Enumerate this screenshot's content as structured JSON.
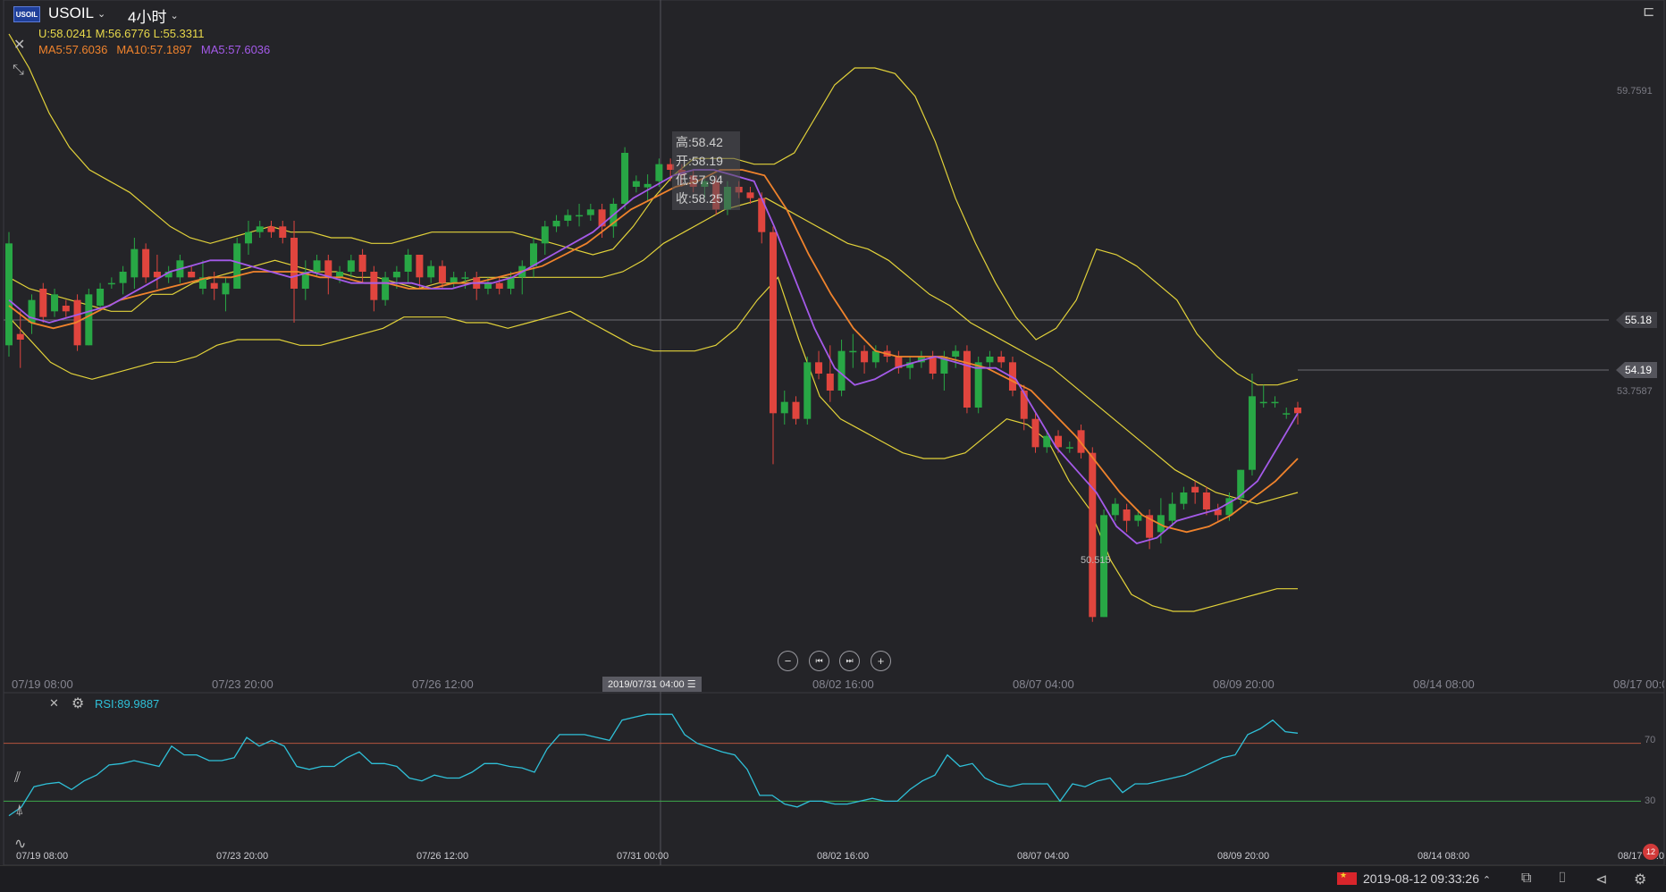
{
  "header": {
    "logo_text": "USOIL",
    "symbol": "USOIL",
    "period": "4小时",
    "bands": "U:58.0241 M:56.6776 L:55.3311",
    "ma": [
      {
        "label": "MA5:57.6036",
        "color": "#f0832c"
      },
      {
        "label": "MA10:57.1897",
        "color": "#f0832c"
      },
      {
        "label": "MA5:57.6036",
        "color": "#a45ae9"
      }
    ]
  },
  "tooltip": {
    "high": "高:58.42",
    "open": "开:58.19",
    "low": "低:57.94",
    "close": "收:58.25"
  },
  "price_axis": {
    "labels": [
      "59.7591",
      "53.7587"
    ],
    "hline_tag": "55.18",
    "last_tag": "54.19",
    "low_marker": "50.515"
  },
  "time_axis": {
    "main": [
      "07/19 08:00",
      "07/23 20:00",
      "07/26 12:00",
      "08/02 16:00",
      "08/07 04:00",
      "08/09 20:00",
      "08/14 08:00",
      "08/17 00:00"
    ],
    "crosshair_tag": "2019/07/31 04:00 ☰",
    "rsi": [
      "07/19 08:00",
      "07/23 20:00",
      "07/26 12:00",
      "07/31 00:00",
      "08/02 16:00",
      "08/07 04:00",
      "08/09 20:00",
      "08/14 08:00",
      "08/17 00:00"
    ]
  },
  "rsi": {
    "label": "RSI:89.9887",
    "levels": [
      "70",
      "30"
    ]
  },
  "status": {
    "datetime": "2019-08-12 09:33:26",
    "badge": "12"
  },
  "icons": [
    "close-icon",
    "collapse-icon",
    "settings-icon",
    "zoom-out-icon",
    "step-back-icon",
    "step-forward-icon",
    "zoom-in-icon",
    "indicator-icon",
    "drawing-icon",
    "pulse-icon",
    "window-icon",
    "camera-icon",
    "mute-icon",
    "gear-icon",
    "sidebar-toggle-icon"
  ],
  "colors": {
    "up": "#28a745",
    "down": "#e0453e",
    "band": "#e2d23a",
    "ma5": "#a45ae9",
    "ma10": "#f0832c",
    "rsi": "#2fc0d8"
  },
  "chart_data": {
    "type": "candlestick",
    "symbol": "USOIL",
    "ylim": [
      49.5,
      61.5
    ],
    "candles": [
      [
        55.4,
        57.2,
        55.2,
        57.4
      ],
      [
        55.6,
        55.5,
        55.0,
        56.0
      ],
      [
        55.8,
        56.2,
        55.6,
        56.3
      ],
      [
        56.4,
        55.9,
        55.8,
        56.5
      ],
      [
        56.0,
        56.3,
        55.9,
        56.4
      ],
      [
        56.1,
        56.0,
        55.9,
        56.2
      ],
      [
        56.2,
        55.4,
        55.3,
        56.3
      ],
      [
        55.4,
        56.3,
        55.4,
        56.4
      ],
      [
        56.1,
        56.4,
        56.0,
        56.5
      ],
      [
        56.5,
        56.5,
        56.4,
        56.6
      ],
      [
        56.5,
        56.7,
        56.3,
        56.8
      ],
      [
        56.6,
        57.1,
        56.4,
        57.3
      ],
      [
        57.1,
        56.6,
        56.5,
        57.2
      ],
      [
        56.7,
        56.6,
        56.4,
        57.0
      ],
      [
        56.6,
        56.7,
        56.5,
        56.8
      ],
      [
        56.6,
        56.9,
        56.5,
        57.0
      ],
      [
        56.7,
        56.6,
        56.6,
        56.8
      ],
      [
        56.4,
        56.6,
        56.3,
        56.9
      ],
      [
        56.5,
        56.4,
        56.2,
        56.7
      ],
      [
        56.3,
        56.5,
        56.0,
        56.6
      ],
      [
        56.4,
        57.2,
        56.4,
        57.3
      ],
      [
        57.2,
        57.4,
        57.0,
        57.6
      ],
      [
        57.4,
        57.5,
        57.3,
        57.6
      ],
      [
        57.5,
        57.4,
        57.3,
        57.6
      ],
      [
        57.5,
        57.3,
        57.2,
        57.6
      ],
      [
        57.3,
        56.4,
        55.8,
        57.6
      ],
      [
        56.4,
        56.7,
        56.2,
        56.9
      ],
      [
        56.7,
        56.9,
        56.6,
        57.0
      ],
      [
        56.9,
        56.6,
        56.3,
        57.0
      ],
      [
        56.6,
        56.7,
        56.5,
        56.8
      ],
      [
        56.7,
        56.9,
        56.6,
        57.0
      ],
      [
        57.0,
        56.7,
        56.5,
        57.1
      ],
      [
        56.7,
        56.2,
        56.0,
        56.8
      ],
      [
        56.2,
        56.6,
        56.1,
        56.7
      ],
      [
        56.6,
        56.7,
        56.4,
        56.8
      ],
      [
        56.7,
        57.0,
        56.5,
        57.1
      ],
      [
        57.0,
        56.6,
        56.4,
        57.0
      ],
      [
        56.6,
        56.8,
        56.5,
        56.9
      ],
      [
        56.8,
        56.5,
        56.4,
        56.9
      ],
      [
        56.5,
        56.6,
        56.4,
        56.7
      ],
      [
        56.6,
        56.6,
        56.4,
        56.7
      ],
      [
        56.6,
        56.4,
        56.2,
        56.7
      ],
      [
        56.4,
        56.5,
        56.3,
        56.6
      ],
      [
        56.5,
        56.4,
        56.3,
        56.6
      ],
      [
        56.4,
        56.6,
        56.3,
        56.7
      ],
      [
        56.6,
        56.8,
        56.3,
        56.9
      ],
      [
        56.8,
        57.2,
        56.6,
        57.3
      ],
      [
        57.2,
        57.5,
        57.0,
        57.6
      ],
      [
        57.5,
        57.6,
        57.4,
        57.7
      ],
      [
        57.6,
        57.7,
        57.5,
        57.8
      ],
      [
        57.7,
        57.7,
        57.5,
        57.9
      ],
      [
        57.7,
        57.8,
        57.6,
        57.9
      ],
      [
        57.8,
        57.5,
        57.3,
        57.9
      ],
      [
        57.5,
        57.9,
        57.3,
        58.0
      ],
      [
        57.9,
        58.8,
        57.8,
        58.9
      ],
      [
        58.2,
        58.3,
        58.1,
        58.4
      ],
      [
        58.19,
        58.25,
        57.94,
        58.42
      ],
      [
        58.3,
        58.6,
        58.2,
        58.7
      ],
      [
        58.6,
        58.5,
        58.3,
        58.7
      ],
      [
        58.5,
        58.4,
        58.2,
        58.6
      ],
      [
        58.4,
        58.2,
        58.1,
        58.5
      ],
      [
        58.2,
        58.3,
        58.0,
        58.4
      ],
      [
        58.3,
        57.8,
        57.7,
        58.4
      ],
      [
        57.8,
        58.2,
        57.7,
        58.3
      ],
      [
        58.2,
        58.1,
        58.0,
        58.3
      ],
      [
        58.1,
        58.0,
        57.9,
        58.2
      ],
      [
        58.0,
        57.4,
        57.2,
        58.1
      ],
      [
        57.4,
        54.2,
        53.3,
        57.5
      ],
      [
        54.2,
        54.4,
        54.0,
        54.6
      ],
      [
        54.4,
        54.1,
        54.0,
        54.5
      ],
      [
        54.1,
        55.1,
        54.0,
        55.2
      ],
      [
        55.1,
        54.9,
        54.8,
        55.3
      ],
      [
        54.9,
        54.6,
        54.4,
        55.4
      ],
      [
        54.6,
        55.3,
        54.5,
        55.5
      ],
      [
        55.3,
        55.3,
        55.0,
        55.6
      ],
      [
        55.3,
        55.1,
        54.9,
        55.4
      ],
      [
        55.1,
        55.3,
        55.0,
        55.4
      ],
      [
        55.3,
        55.2,
        55.1,
        55.4
      ],
      [
        55.2,
        55.0,
        54.9,
        55.3
      ],
      [
        55.0,
        55.1,
        54.8,
        55.2
      ],
      [
        55.1,
        55.2,
        55.0,
        55.3
      ],
      [
        55.2,
        54.9,
        54.8,
        55.3
      ],
      [
        54.9,
        55.2,
        54.6,
        55.3
      ],
      [
        55.2,
        55.3,
        55.0,
        55.4
      ],
      [
        55.3,
        54.3,
        54.2,
        55.4
      ],
      [
        54.3,
        55.1,
        54.2,
        55.2
      ],
      [
        55.1,
        55.2,
        55.0,
        55.3
      ],
      [
        55.2,
        55.1,
        55.0,
        55.3
      ],
      [
        55.1,
        54.6,
        54.5,
        55.2
      ],
      [
        54.6,
        54.1,
        53.9,
        54.7
      ],
      [
        54.1,
        53.6,
        53.5,
        54.2
      ],
      [
        53.6,
        53.8,
        53.5,
        53.9
      ],
      [
        53.8,
        53.6,
        53.5,
        53.9
      ],
      [
        53.6,
        53.6,
        53.5,
        53.7
      ],
      [
        53.9,
        53.5,
        53.4,
        54.0
      ],
      [
        53.5,
        50.6,
        50.515,
        53.6
      ],
      [
        50.6,
        52.4,
        50.6,
        52.5
      ],
      [
        52.4,
        52.6,
        52.3,
        52.7
      ],
      [
        52.5,
        52.3,
        52.1,
        52.6
      ],
      [
        52.3,
        52.4,
        52.2,
        52.5
      ],
      [
        52.4,
        52.0,
        51.8,
        52.5
      ],
      [
        52.1,
        52.4,
        51.9,
        52.7
      ],
      [
        52.3,
        52.6,
        52.2,
        52.8
      ],
      [
        52.6,
        52.8,
        52.5,
        52.9
      ],
      [
        52.9,
        52.8,
        52.6,
        53.0
      ],
      [
        52.8,
        52.5,
        52.4,
        52.9
      ],
      [
        52.5,
        52.4,
        52.3,
        52.6
      ],
      [
        52.4,
        52.7,
        52.3,
        52.8
      ],
      [
        52.7,
        53.2,
        52.6,
        53.2
      ],
      [
        53.2,
        54.5,
        53.1,
        54.9
      ],
      [
        54.4,
        54.4,
        54.3,
        54.7
      ],
      [
        54.4,
        54.4,
        54.3,
        54.5
      ],
      [
        54.2,
        54.2,
        54.1,
        54.3
      ],
      [
        54.3,
        54.2,
        54.0,
        54.4
      ]
    ],
    "bb_upper": [
      60.9,
      60.3,
      59.5,
      58.9,
      58.5,
      58.3,
      58.1,
      57.8,
      57.5,
      57.3,
      57.2,
      57.3,
      57.4,
      57.5,
      57.4,
      57.4,
      57.3,
      57.3,
      57.2,
      57.2,
      57.3,
      57.4,
      57.4,
      57.4,
      57.4,
      57.4,
      57.3,
      57.2,
      57.1,
      57.0,
      57.1,
      57.5,
      58.0,
      58.4,
      58.7,
      58.7,
      58.7,
      58.6,
      58.6,
      58.8,
      59.4,
      60.0,
      60.3,
      60.3,
      60.2,
      59.8,
      59.0,
      58.0,
      57.2,
      56.5,
      55.9,
      55.5,
      55.7,
      56.2,
      57.1,
      57.0,
      56.8,
      56.5,
      56.2,
      55.6,
      55.2,
      54.9,
      54.7,
      54.7,
      54.8
    ],
    "bb_mid": [
      56.6,
      56.4,
      56.3,
      56.2,
      56.1,
      56.0,
      56.0,
      56.3,
      56.3,
      56.5,
      56.6,
      56.7,
      56.8,
      56.9,
      56.8,
      56.7,
      56.7,
      56.6,
      56.6,
      56.5,
      56.4,
      56.5,
      56.5,
      56.6,
      56.6,
      56.6,
      56.6,
      56.6,
      56.6,
      56.6,
      56.7,
      56.9,
      57.2,
      57.4,
      57.6,
      57.8,
      57.9,
      58.0,
      57.8,
      57.6,
      57.4,
      57.2,
      57.1,
      56.9,
      56.6,
      56.3,
      56.1,
      55.8,
      55.6,
      55.4,
      55.2,
      55.0,
      54.7,
      54.4,
      54.1,
      53.8,
      53.5,
      53.2,
      53.0,
      52.8,
      52.7,
      52.6,
      52.7,
      52.8
    ],
    "bb_lower": [
      55.9,
      55.5,
      55.1,
      54.9,
      54.8,
      54.9,
      55.0,
      55.1,
      55.1,
      55.2,
      55.4,
      55.5,
      55.5,
      55.5,
      55.4,
      55.4,
      55.5,
      55.6,
      55.7,
      55.9,
      55.9,
      55.9,
      55.8,
      55.8,
      55.7,
      55.8,
      55.9,
      56.0,
      55.8,
      55.6,
      55.4,
      55.3,
      55.3,
      55.3,
      55.4,
      55.7,
      56.2,
      56.6,
      55.5,
      54.5,
      54.1,
      53.9,
      53.7,
      53.5,
      53.4,
      53.4,
      53.5,
      53.8,
      54.1,
      54.0,
      53.7,
      53.0,
      52.5,
      51.6,
      51.0,
      50.8,
      50.7,
      50.7,
      50.8,
      50.9,
      51.0,
      51.1,
      51.1
    ],
    "ma5": [
      56.2,
      55.9,
      55.8,
      55.9,
      56.0,
      56.1,
      56.3,
      56.5,
      56.7,
      56.8,
      56.9,
      56.9,
      56.8,
      56.7,
      56.6,
      56.7,
      56.6,
      56.5,
      56.5,
      56.5,
      56.5,
      56.4,
      56.4,
      56.5,
      56.5,
      56.6,
      56.8,
      57.0,
      57.2,
      57.4,
      57.7,
      58.0,
      58.2,
      58.4,
      58.5,
      58.5,
      58.4,
      58.3,
      57.5,
      56.6,
      55.7,
      55.0,
      54.7,
      54.8,
      55.0,
      55.1,
      55.2,
      55.1,
      55.0,
      55.0,
      54.8,
      54.2,
      53.6,
      53.2,
      52.8,
      52.2,
      51.9,
      52.0,
      52.3,
      52.4,
      52.5,
      52.7,
      53.0,
      53.6,
      54.2
    ],
    "ma10": [
      56.1,
      55.8,
      55.7,
      55.8,
      56.0,
      56.2,
      56.3,
      56.4,
      56.5,
      56.6,
      56.6,
      56.7,
      56.7,
      56.7,
      56.6,
      56.6,
      56.5,
      56.5,
      56.4,
      56.4,
      56.5,
      56.5,
      56.6,
      56.7,
      56.8,
      57.0,
      57.2,
      57.5,
      57.8,
      58.0,
      58.2,
      58.3,
      58.5,
      58.5,
      58.4,
      57.8,
      57.0,
      56.3,
      55.7,
      55.3,
      55.2,
      55.2,
      55.2,
      55.1,
      55.0,
      54.8,
      54.6,
      54.2,
      53.8,
      53.3,
      52.8,
      52.4,
      52.2,
      52.1,
      52.2,
      52.4,
      52.7,
      53.0,
      53.4
    ],
    "rsi_series": {
      "name": "RSI",
      "ylim": [
        0,
        100
      ],
      "values": [
        20,
        26,
        40,
        42,
        43,
        38,
        44,
        48,
        55,
        56,
        58,
        56,
        54,
        68,
        62,
        62,
        58,
        58,
        60,
        74,
        68,
        72,
        68,
        54,
        52,
        54,
        54,
        60,
        64,
        56,
        56,
        54,
        46,
        44,
        48,
        46,
        46,
        50,
        56,
        56,
        54,
        53,
        50,
        66,
        76,
        76,
        76,
        74,
        72,
        86,
        88,
        90,
        90,
        90,
        76,
        70,
        67,
        64,
        62,
        52,
        34,
        34,
        28,
        26,
        30,
        30,
        28,
        28,
        30,
        32,
        30,
        30,
        38,
        44,
        48,
        62,
        54,
        56,
        46,
        42,
        40,
        42,
        42,
        42,
        30,
        42,
        40,
        44,
        46,
        36,
        42,
        42,
        44,
        46,
        48,
        52,
        56,
        60,
        62,
        76,
        80,
        86,
        78,
        77
      ]
    }
  }
}
